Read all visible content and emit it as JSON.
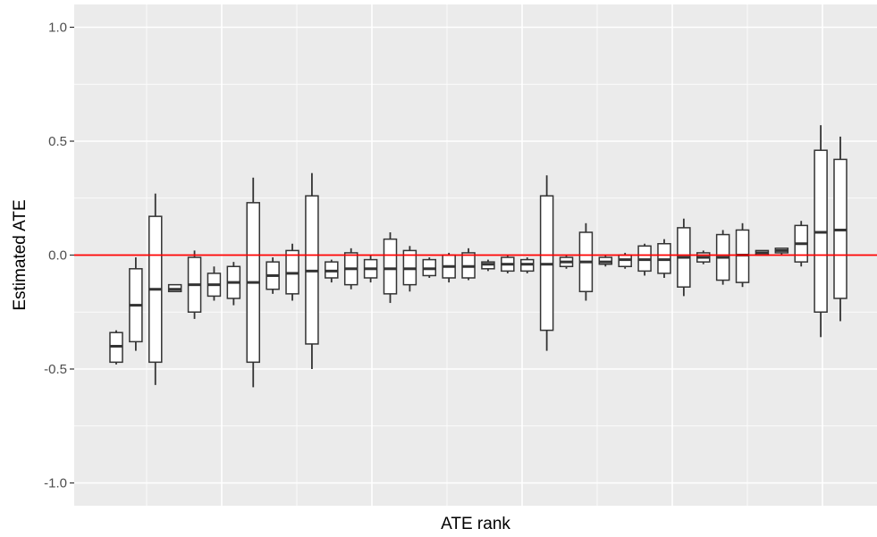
{
  "chart_data": {
    "type": "boxplot",
    "title": "",
    "xlabel": "ATE rank",
    "ylabel": "Estimated ATE",
    "ylim": [
      -1.1,
      1.1
    ],
    "y_ticks": [
      -1.0,
      -0.5,
      0.0,
      0.5,
      1.0
    ],
    "y_tick_labels": [
      "-1.0",
      "-0.5",
      "0.0",
      "0.5",
      "1.0"
    ],
    "x_ticks_shown": false,
    "grid": true,
    "panel_background": "#ebebeb",
    "grid_color": "#ffffff",
    "box_stroke_color": "#333333",
    "reference_line": {
      "y": 0.0,
      "color": "#ff0000"
    },
    "boxes": [
      {
        "rank": 1,
        "wl": -0.48,
        "q1": -0.47,
        "med": -0.4,
        "q3": -0.34,
        "wh": -0.33
      },
      {
        "rank": 2,
        "wl": -0.42,
        "q1": -0.38,
        "med": -0.22,
        "q3": -0.06,
        "wh": -0.01
      },
      {
        "rank": 3,
        "wl": -0.57,
        "q1": -0.47,
        "med": -0.15,
        "q3": 0.17,
        "wh": 0.27
      },
      {
        "rank": 4,
        "wl": -0.16,
        "q1": -0.16,
        "med": -0.15,
        "q3": -0.13,
        "wh": -0.13
      },
      {
        "rank": 5,
        "wl": -0.28,
        "q1": -0.25,
        "med": -0.13,
        "q3": -0.01,
        "wh": 0.02
      },
      {
        "rank": 6,
        "wl": -0.2,
        "q1": -0.18,
        "med": -0.13,
        "q3": -0.08,
        "wh": -0.05
      },
      {
        "rank": 7,
        "wl": -0.22,
        "q1": -0.19,
        "med": -0.12,
        "q3": -0.05,
        "wh": -0.03
      },
      {
        "rank": 8,
        "wl": -0.58,
        "q1": -0.47,
        "med": -0.12,
        "q3": 0.23,
        "wh": 0.34
      },
      {
        "rank": 9,
        "wl": -0.17,
        "q1": -0.15,
        "med": -0.09,
        "q3": -0.03,
        "wh": -0.01
      },
      {
        "rank": 10,
        "wl": -0.2,
        "q1": -0.17,
        "med": -0.08,
        "q3": 0.02,
        "wh": 0.05
      },
      {
        "rank": 11,
        "wl": -0.5,
        "q1": -0.39,
        "med": -0.07,
        "q3": 0.26,
        "wh": 0.36
      },
      {
        "rank": 12,
        "wl": -0.12,
        "q1": -0.1,
        "med": -0.07,
        "q3": -0.03,
        "wh": -0.02
      },
      {
        "rank": 13,
        "wl": -0.15,
        "q1": -0.13,
        "med": -0.06,
        "q3": 0.01,
        "wh": 0.03
      },
      {
        "rank": 14,
        "wl": -0.12,
        "q1": -0.1,
        "med": -0.06,
        "q3": -0.02,
        "wh": 0.0
      },
      {
        "rank": 15,
        "wl": -0.21,
        "q1": -0.17,
        "med": -0.06,
        "q3": 0.07,
        "wh": 0.1
      },
      {
        "rank": 16,
        "wl": -0.16,
        "q1": -0.13,
        "med": -0.06,
        "q3": 0.02,
        "wh": 0.04
      },
      {
        "rank": 17,
        "wl": -0.1,
        "q1": -0.09,
        "med": -0.06,
        "q3": -0.02,
        "wh": -0.01
      },
      {
        "rank": 18,
        "wl": -0.12,
        "q1": -0.1,
        "med": -0.05,
        "q3": 0.0,
        "wh": 0.01
      },
      {
        "rank": 19,
        "wl": -0.11,
        "q1": -0.1,
        "med": -0.05,
        "q3": 0.01,
        "wh": 0.03
      },
      {
        "rank": 20,
        "wl": -0.07,
        "q1": -0.06,
        "med": -0.04,
        "q3": -0.03,
        "wh": -0.02
      },
      {
        "rank": 21,
        "wl": -0.08,
        "q1": -0.07,
        "med": -0.04,
        "q3": -0.01,
        "wh": 0.0
      },
      {
        "rank": 22,
        "wl": -0.08,
        "q1": -0.07,
        "med": -0.04,
        "q3": -0.02,
        "wh": -0.01
      },
      {
        "rank": 23,
        "wl": -0.42,
        "q1": -0.33,
        "med": -0.04,
        "q3": 0.26,
        "wh": 0.35
      },
      {
        "rank": 24,
        "wl": -0.06,
        "q1": -0.05,
        "med": -0.03,
        "q3": -0.01,
        "wh": 0.0
      },
      {
        "rank": 25,
        "wl": -0.2,
        "q1": -0.16,
        "med": -0.03,
        "q3": 0.1,
        "wh": 0.14
      },
      {
        "rank": 26,
        "wl": -0.05,
        "q1": -0.04,
        "med": -0.03,
        "q3": -0.01,
        "wh": 0.0
      },
      {
        "rank": 27,
        "wl": -0.06,
        "q1": -0.05,
        "med": -0.02,
        "q3": 0.0,
        "wh": 0.01
      },
      {
        "rank": 28,
        "wl": -0.09,
        "q1": -0.07,
        "med": -0.02,
        "q3": 0.04,
        "wh": 0.05
      },
      {
        "rank": 29,
        "wl": -0.1,
        "q1": -0.08,
        "med": -0.02,
        "q3": 0.05,
        "wh": 0.07
      },
      {
        "rank": 30,
        "wl": -0.18,
        "q1": -0.14,
        "med": -0.01,
        "q3": 0.12,
        "wh": 0.16
      },
      {
        "rank": 31,
        "wl": -0.04,
        "q1": -0.03,
        "med": -0.01,
        "q3": 0.01,
        "wh": 0.02
      },
      {
        "rank": 32,
        "wl": -0.13,
        "q1": -0.11,
        "med": -0.01,
        "q3": 0.09,
        "wh": 0.11
      },
      {
        "rank": 33,
        "wl": -0.14,
        "q1": -0.12,
        "med": 0.0,
        "q3": 0.11,
        "wh": 0.14
      },
      {
        "rank": 34,
        "wl": 0.0,
        "q1": 0.0,
        "med": 0.01,
        "q3": 0.02,
        "wh": 0.02
      },
      {
        "rank": 35,
        "wl": 0.0,
        "q1": 0.01,
        "med": 0.02,
        "q3": 0.03,
        "wh": 0.03
      },
      {
        "rank": 36,
        "wl": -0.05,
        "q1": -0.03,
        "med": 0.05,
        "q3": 0.13,
        "wh": 0.15
      },
      {
        "rank": 37,
        "wl": -0.36,
        "q1": -0.25,
        "med": 0.1,
        "q3": 0.46,
        "wh": 0.57
      },
      {
        "rank": 38,
        "wl": -0.29,
        "q1": -0.19,
        "med": 0.11,
        "q3": 0.42,
        "wh": 0.52
      }
    ]
  }
}
